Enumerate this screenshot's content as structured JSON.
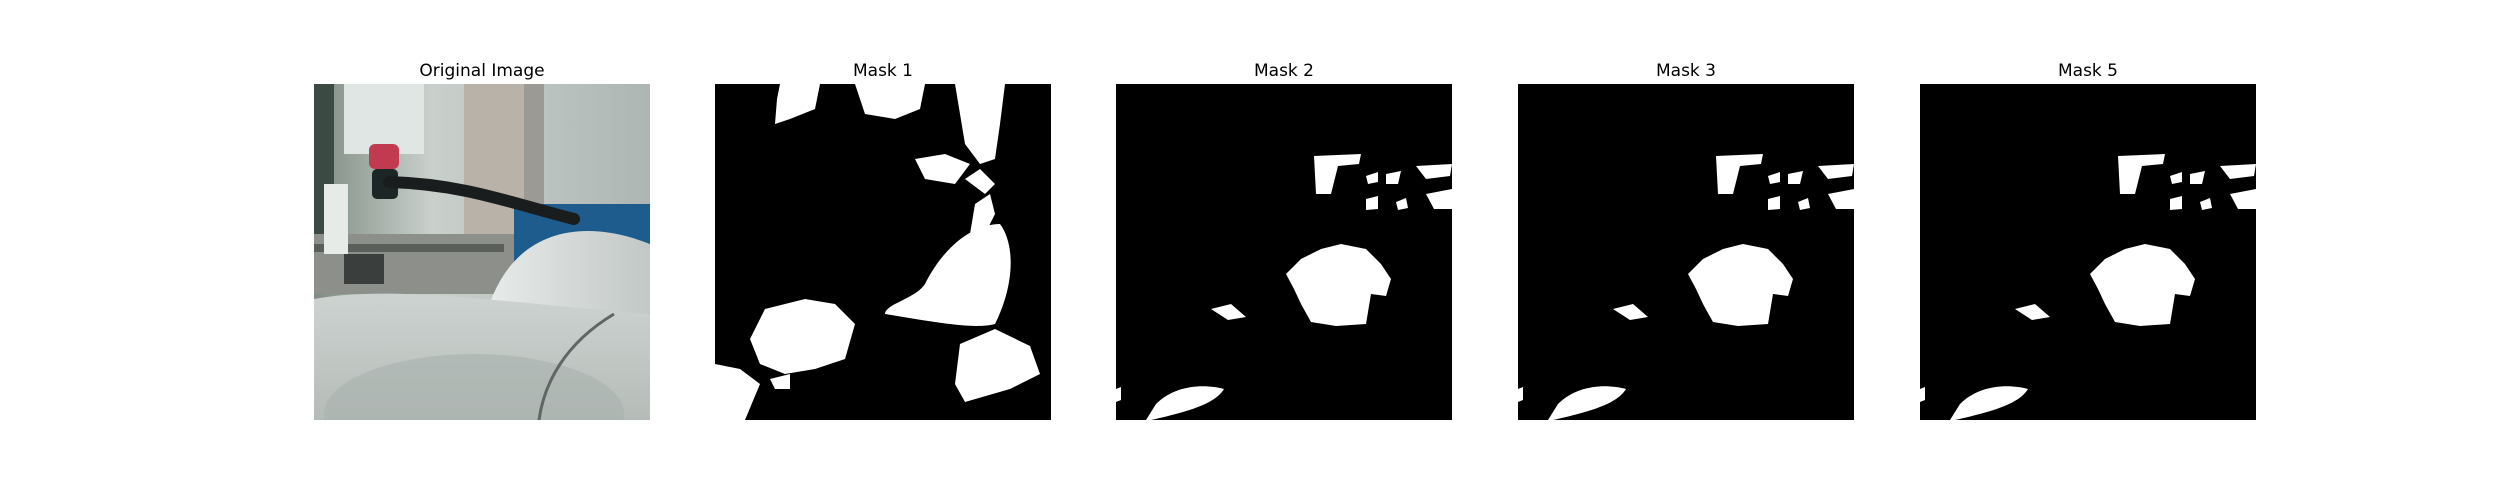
{
  "panels": [
    {
      "title": "Original Image",
      "kind": "photo"
    },
    {
      "title": "Mask 1",
      "kind": "mask"
    },
    {
      "title": "Mask 2",
      "kind": "mask"
    },
    {
      "title": "Mask 3",
      "kind": "mask"
    },
    {
      "title": "Mask 5",
      "kind": "mask"
    }
  ],
  "colors": {
    "mask_background": "#000000",
    "mask_foreground": "#ffffff"
  }
}
